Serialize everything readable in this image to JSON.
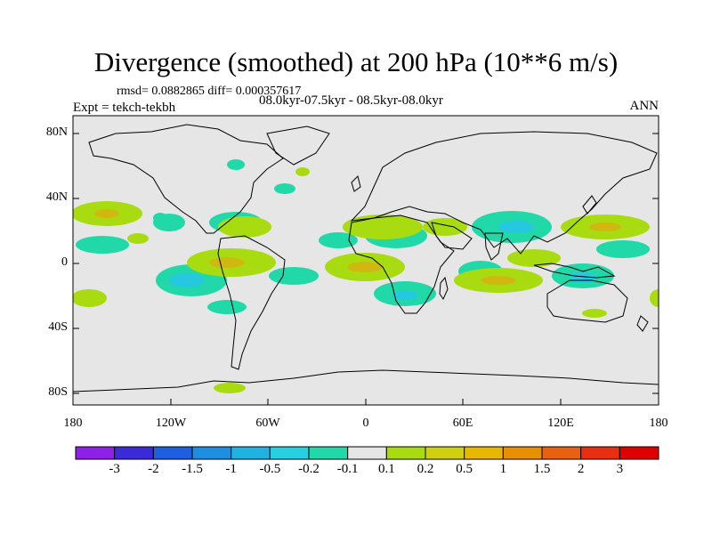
{
  "title": "Divergence (smoothed) at 200 hPa (10**6 m/s)",
  "stats_line": "rmsd= 0.0882865 diff= 0.000357617",
  "expt_label": "Expt = tekch-tekbh",
  "period_label": "08.0kyr-07.5kyr - 08.5kyr-08.0kyr",
  "season_label": "ANN",
  "lat_ticks": [
    "80N",
    "40N",
    "0",
    "40S",
    "80S"
  ],
  "lon_ticks": [
    "180",
    "120W",
    "60W",
    "0",
    "60E",
    "120E",
    "180"
  ],
  "colorbar": {
    "labels": [
      "-3",
      "-2",
      "-1.5",
      "-1",
      "-0.5",
      "-0.2",
      "-0.1",
      "0.1",
      "0.2",
      "0.5",
      "1",
      "1.5",
      "2",
      "3"
    ],
    "colors": [
      "#8f20e8",
      "#3a2ad8",
      "#1e5fe0",
      "#1e8ee0",
      "#20b2e0",
      "#26d0e0",
      "#20d8a8",
      "#e6e6e6",
      "#a8dc10",
      "#d0d010",
      "#e8b800",
      "#e89000",
      "#e86010",
      "#e83010",
      "#e00000"
    ]
  },
  "colors": {
    "background": "#e6e6e6",
    "positive": "#a8dc10",
    "positive_strong": "#d0b810",
    "negative": "#20d8a8",
    "negative_strong": "#26c8e0",
    "coast": "#000000"
  }
}
